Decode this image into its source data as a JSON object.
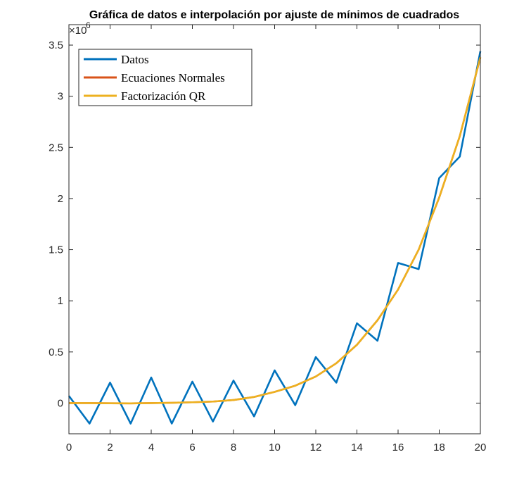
{
  "chart_data": {
    "type": "line",
    "title": "Gráfica de datos e interpolación por ajuste de mínimos de cuadrados",
    "xlabel": "",
    "ylabel": "",
    "y_exponent_base": "×10",
    "y_exponent_power": "6",
    "xlim": [
      0,
      20
    ],
    "ylim": [
      -300000,
      3700000
    ],
    "xticks": [
      0,
      2,
      4,
      6,
      8,
      10,
      12,
      14,
      16,
      18,
      20
    ],
    "xtick_labels": [
      "0",
      "2",
      "4",
      "6",
      "8",
      "10",
      "12",
      "14",
      "16",
      "18",
      "20"
    ],
    "yticks": [
      0,
      500000,
      1000000,
      1500000,
      2000000,
      2500000,
      3000000,
      3500000
    ],
    "ytick_labels": [
      "0",
      "0.5",
      "1",
      "1.5",
      "2",
      "2.5",
      "3",
      "3.5"
    ],
    "grid": false,
    "legend_position": "top-left",
    "x": [
      0,
      1,
      2,
      3,
      4,
      5,
      6,
      7,
      8,
      9,
      10,
      11,
      12,
      13,
      14,
      15,
      16,
      17,
      18,
      19,
      20
    ],
    "series": [
      {
        "name": "Datos",
        "color": "#0072BD",
        "values": [
          70000,
          -200000,
          200000,
          -200000,
          250000,
          -200000,
          210000,
          -180000,
          220000,
          -130000,
          320000,
          -20000,
          450000,
          200000,
          780000,
          610000,
          1370000,
          1310000,
          2200000,
          2410000,
          3440000
        ]
      },
      {
        "name": "Ecuaciones Normales",
        "color": "#D95319",
        "values": [
          0,
          0,
          -2000,
          -3000,
          0,
          3000,
          8000,
          15000,
          30000,
          60000,
          110000,
          170000,
          260000,
          390000,
          570000,
          810000,
          1110000,
          1500000,
          2010000,
          2610000,
          3380000
        ]
      },
      {
        "name": "Factorización QR",
        "color": "#EDB120",
        "values": [
          0,
          0,
          -2000,
          -3000,
          0,
          3000,
          8000,
          15000,
          30000,
          60000,
          110000,
          170000,
          260000,
          390000,
          570000,
          810000,
          1110000,
          1500000,
          2010000,
          2610000,
          3380000
        ]
      }
    ]
  }
}
